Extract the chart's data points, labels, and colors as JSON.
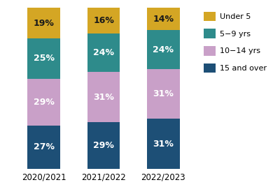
{
  "categories": [
    "2020/2021",
    "2021/2022",
    "2022/2023"
  ],
  "series": [
    {
      "label": "15 and over",
      "values": [
        27,
        29,
        31
      ],
      "color": "#1d4f76"
    },
    {
      "label": "10−14 yrs",
      "values": [
        29,
        31,
        31
      ],
      "color": "#c9a0c8"
    },
    {
      "label": "5−9 yrs",
      "values": [
        25,
        24,
        24
      ],
      "color": "#2e8b8b"
    },
    {
      "label": "Under 5",
      "values": [
        19,
        16,
        14
      ],
      "color": "#d4a624"
    }
  ],
  "bar_width": 0.55,
  "figsize": [
    4.0,
    2.78
  ],
  "dpi": 100,
  "label_fontsize": 9,
  "legend_fontsize": 8.0,
  "tick_fontsize": 8.5,
  "text_color_dark": "#1a1a1a",
  "text_color_light": "#ffffff",
  "background_color": "#ffffff",
  "ylim": [
    0,
    100
  ]
}
